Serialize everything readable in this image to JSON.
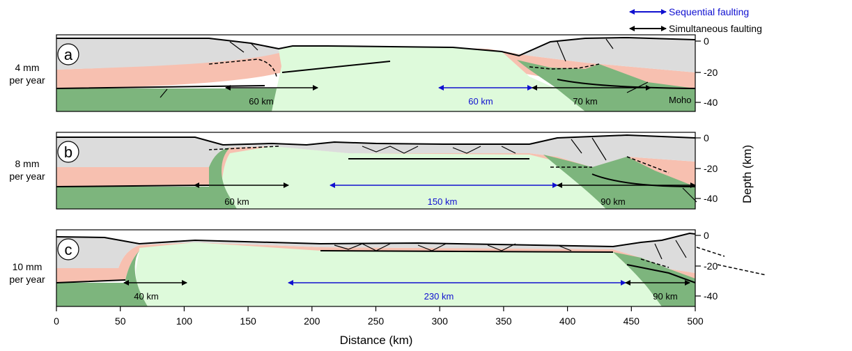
{
  "legend": {
    "sequential": {
      "label": "Sequential faulting",
      "color": "#1010d0"
    },
    "simultaneous": {
      "label": "Simultaneous faulting",
      "color": "#000000"
    }
  },
  "x_axis": {
    "title": "Distance (km)",
    "ticks": [
      "0",
      "50",
      "100",
      "150",
      "200",
      "250",
      "300",
      "350",
      "400",
      "450",
      "500"
    ]
  },
  "y_axis": {
    "title": "Depth (km)",
    "ticks": [
      "0",
      "-20",
      "-40"
    ]
  },
  "colors": {
    "upper_crust": "#dcdcdc",
    "lower_crust": "#f7c0b0",
    "mantle": "#7db57d",
    "mantle_upwelling": "#defadb"
  },
  "panels": [
    {
      "letter": "a",
      "rate": [
        "4 mm",
        "per year"
      ],
      "moho_label": "Moho",
      "distances": {
        "left": "60 km",
        "center": "60 km",
        "right": "70 km"
      }
    },
    {
      "letter": "b",
      "rate": [
        "8 mm",
        "per year"
      ],
      "moho_label": "",
      "distances": {
        "left": "60 km",
        "center": "150 km",
        "right": "90 km"
      }
    },
    {
      "letter": "c",
      "rate": [
        "10 mm",
        "per year"
      ],
      "moho_label": "",
      "distances": {
        "left": "40 km",
        "center": "230 km",
        "right": "90 km"
      }
    }
  ]
}
